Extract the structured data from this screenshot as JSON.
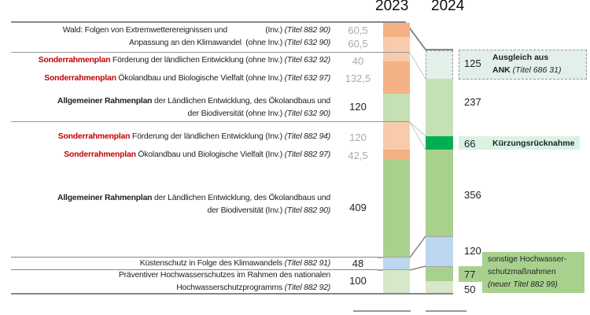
{
  "chart_data": {
    "type": "bar",
    "title": "",
    "categories": [
      "2023",
      "2024"
    ],
    "series_2023": [
      {
        "label_red": "",
        "label_bold": "",
        "label": "Wald: Folgen von Extremwetterereignissen und",
        "suffix": "(Inv.)",
        "titel": "(Titel 882 90)",
        "value": "60,5"
      },
      {
        "label_red": "",
        "label_bold": "",
        "label": "Anpassung an den Klimawandel",
        "suffix": "(ohne Inv.)",
        "titel": "(Titel 632 90)",
        "value": "60,5"
      },
      {
        "label_red": "Sonderrahmenplan",
        "label": " Förderung der ländlichen Entwicklung (ohne Inv.) ",
        "titel": "(Titel 632 92)",
        "value": "40"
      },
      {
        "label_red": "Sonderrahmenplan",
        "label": " Ökolandbau und Biologische Vielfalt (ohne Inv.) ",
        "titel": "(Titel 632 97)",
        "value": "132,5"
      },
      {
        "label_bold": "Allgemeiner Rahmenplan",
        "label": " der Ländlichen Entwicklung, des Ökolandbaus und",
        "label2": "der Biodiversität (ohne Inv.) ",
        "titel": "(Titel 632 90)",
        "value": "120"
      },
      {
        "label_red": "Sonderrahmenplan",
        "label": " Förderung der ländlichen Entwicklung (Inv.) ",
        "titel": "(Titel 882 94)",
        "value": "120"
      },
      {
        "label_red": "Sonderrahmenplan",
        "label": " Ökolandbau und Biologische Vielfalt (Inv.) ",
        "titel": "(Titel 882 97)",
        "value": "42,5"
      },
      {
        "label_bold": "Allgemeiner Rahmenplan",
        "label": " der Ländlichen Entwicklung, des Ökolandbaus und",
        "label2": "der Biodiversität (Inv.) ",
        "titel": "(Titel 882 90)",
        "value": "409"
      },
      {
        "label": "Küstenschutz in Folge des Klimawandels ",
        "titel": "(Titel 882 91)",
        "value": "48"
      },
      {
        "label": "Präventiver Hochwasserschutzes im Rahmen des nationalen",
        "label2": "Hochwasserschutzprogramms ",
        "titel": "(Titel 882 92)",
        "value": "100"
      }
    ],
    "series_2024": [
      {
        "value": "125",
        "note_bold1": "Ausgleich aus",
        "note_bold2": "ANK",
        "note_titel": "(Titel 686 31)"
      },
      {
        "value": "237"
      },
      {
        "value": "66",
        "note_bold1": "Kürzungsrücknahme"
      },
      {
        "value": "356"
      },
      {
        "value": "120"
      },
      {
        "value": "77",
        "note1": "sonstige Hochwasser-",
        "note2": "schutzmaßnahmen",
        "note_titel": "(neuer Titel 882 99)"
      },
      {
        "value": "50"
      }
    ],
    "colors": {
      "orange": "#f4b183",
      "light_orange": "#f8cbad",
      "light_green": "#c5e0b4",
      "green": "#a9d18e",
      "dark_green": "#00b050",
      "blue": "#bdd7ee",
      "mint": "#e2f0e9"
    }
  }
}
